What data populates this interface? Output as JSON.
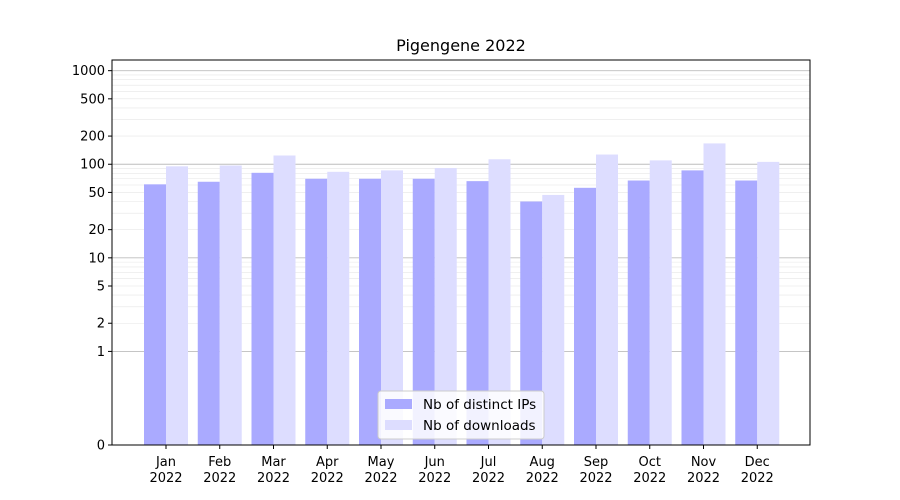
{
  "chart_data": {
    "type": "bar",
    "title": "Pigengene 2022",
    "yscale": "symlog",
    "ylim": [
      0,
      1300
    ],
    "grid": "major-and-minor",
    "legend_position": "bottom-center",
    "categories": [
      {
        "month": "Jan",
        "year": "2022"
      },
      {
        "month": "Feb",
        "year": "2022"
      },
      {
        "month": "Mar",
        "year": "2022"
      },
      {
        "month": "Apr",
        "year": "2022"
      },
      {
        "month": "May",
        "year": "2022"
      },
      {
        "month": "Jun",
        "year": "2022"
      },
      {
        "month": "Jul",
        "year": "2022"
      },
      {
        "month": "Aug",
        "year": "2022"
      },
      {
        "month": "Sep",
        "year": "2022"
      },
      {
        "month": "Oct",
        "year": "2022"
      },
      {
        "month": "Nov",
        "year": "2022"
      },
      {
        "month": "Dec",
        "year": "2022"
      }
    ],
    "yticks": [
      {
        "value": 0,
        "label": "0"
      },
      {
        "value": 1,
        "label": "1"
      },
      {
        "value": 2,
        "label": "2"
      },
      {
        "value": 5,
        "label": "5"
      },
      {
        "value": 10,
        "label": "10"
      },
      {
        "value": 20,
        "label": "20"
      },
      {
        "value": 50,
        "label": "50"
      },
      {
        "value": 100,
        "label": "100"
      },
      {
        "value": 200,
        "label": "200"
      },
      {
        "value": 500,
        "label": "500"
      },
      {
        "value": 1000,
        "label": "1000"
      }
    ],
    "series": [
      {
        "name": "Nb of distinct IPs",
        "color": "#aaaaff",
        "values": [
          61,
          65,
          81,
          70,
          70,
          70,
          66,
          40,
          56,
          67,
          86,
          67
        ]
      },
      {
        "name": "Nb of downloads",
        "color": "#ddddff",
        "values": [
          95,
          97,
          124,
          83,
          86,
          91,
          113,
          47,
          127,
          110,
          167,
          106
        ]
      }
    ]
  }
}
